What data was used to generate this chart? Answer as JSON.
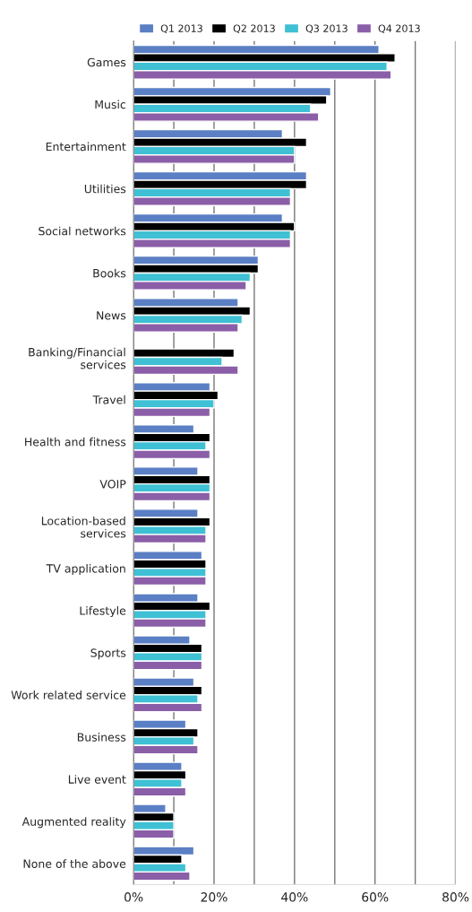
{
  "chart_data": {
    "type": "bar",
    "orientation": "horizontal",
    "categories": [
      "Games",
      "Music",
      "Entertainment",
      "Utilities",
      "Social networks",
      "Books",
      "News",
      "Banking/Financial\nservices",
      "Travel",
      "Health and fitness",
      "VOIP",
      "Location-based\nservices",
      "TV application",
      "Lifestyle",
      "Sports",
      "Work related service",
      "Business",
      "Live event",
      "Augmented reality",
      "None of the above"
    ],
    "series": [
      {
        "name": "Q1 2013",
        "color": "#5b7fc4",
        "values": [
          61,
          49,
          37,
          43,
          37,
          31,
          26,
          null,
          19,
          15,
          16,
          16,
          17,
          16,
          14,
          15,
          13,
          12,
          8,
          15
        ]
      },
      {
        "name": "Q2 2013",
        "color": "#000000",
        "values": [
          65,
          48,
          43,
          43,
          40,
          31,
          29,
          25,
          21,
          19,
          19,
          19,
          18,
          19,
          17,
          17,
          16,
          13,
          10,
          12
        ]
      },
      {
        "name": "Q3 2013",
        "color": "#3fc0d4",
        "values": [
          63,
          44,
          40,
          39,
          39,
          29,
          27,
          22,
          20,
          18,
          19,
          18,
          18,
          18,
          17,
          16,
          15,
          12,
          10,
          13
        ]
      },
      {
        "name": "Q4 2013",
        "color": "#8b5ea8",
        "values": [
          64,
          46,
          40,
          39,
          39,
          28,
          26,
          26,
          19,
          19,
          19,
          18,
          18,
          18,
          17,
          17,
          16,
          13,
          10,
          14
        ]
      }
    ],
    "xlim": [
      0,
      80
    ],
    "xticks": [
      {
        "value": 0,
        "label": "0%"
      },
      {
        "value": 10,
        "label": null
      },
      {
        "value": 20,
        "label": "20%"
      },
      {
        "value": 30,
        "label": null
      },
      {
        "value": 40,
        "label": "40%"
      },
      {
        "value": 50,
        "label": null
      },
      {
        "value": 60,
        "label": "60%"
      },
      {
        "value": 70,
        "label": null
      },
      {
        "value": 80,
        "label": "80%"
      }
    ],
    "grid": "x",
    "legend": "top"
  }
}
